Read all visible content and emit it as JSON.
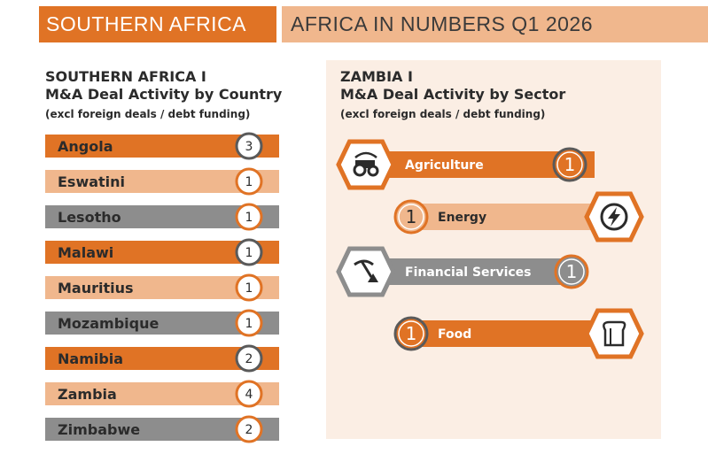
{
  "header": {
    "region": "SOUTHERN AFRICA",
    "report": "AFRICA IN NUMBERS Q1 2026"
  },
  "colors": {
    "orange": "#e07325",
    "peach": "#f0b78d",
    "grey": "#8d8d8d",
    "panel": "#fbeee4"
  },
  "chart_data": [
    {
      "type": "bar",
      "title_line1": "SOUTHERN AFRICA I",
      "title_line2": "M&A Deal Activity by Country",
      "subtitle": "(excl foreign deals / debt funding)",
      "categories": [
        "Angola",
        "Eswatini",
        "Lesotho",
        "Malawi",
        "Mauritius",
        "Mozambique",
        "Namibia",
        "Zambia",
        "Zimbabwe"
      ],
      "values": [
        3,
        1,
        1,
        1,
        1,
        1,
        2,
        4,
        2
      ],
      "bar_colors": [
        "orange",
        "peach",
        "grey",
        "orange",
        "peach",
        "grey",
        "orange",
        "peach",
        "grey"
      ]
    },
    {
      "type": "bar",
      "title_line1": "ZAMBIA I",
      "title_line2": "M&A Deal Activity by Sector",
      "subtitle": "(excl foreign deals / debt funding)",
      "categories": [
        "Agriculture",
        "Energy",
        "Financial Services",
        "Food"
      ],
      "values": [
        1,
        1,
        1,
        1
      ],
      "bar_colors": [
        "orange",
        "peach",
        "grey",
        "orange"
      ],
      "icons": [
        "tractor-icon",
        "lightning-icon",
        "mining-icon",
        "bread-icon"
      ]
    }
  ]
}
